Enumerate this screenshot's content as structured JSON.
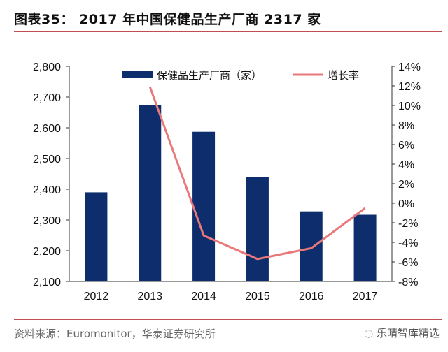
{
  "header": {
    "title": "图表35：  2017 年中国保健品生产厂商 2317 家"
  },
  "footer": {
    "source": "资料来源：Euromonitor，华泰证券研究所",
    "watermark": "乐晴智库精选"
  },
  "colors": {
    "bar": "#0d2d6c",
    "line": "#e8787a",
    "rule": "#c0504d"
  },
  "chart_data": {
    "type": "bar+line",
    "categories": [
      "2012",
      "2013",
      "2014",
      "2015",
      "2016",
      "2017"
    ],
    "series": [
      {
        "name": "保健品生产厂商（家）",
        "type": "bar",
        "axis": "left",
        "values": [
          2390,
          2675,
          2587,
          2440,
          2328,
          2317
        ]
      },
      {
        "name": "增长率",
        "type": "line",
        "axis": "right",
        "values": [
          null,
          11.9,
          -3.3,
          -5.7,
          -4.6,
          -0.5
        ]
      }
    ],
    "y_left": {
      "range": [
        2100,
        2800
      ],
      "ticks": [
        "2,100",
        "2,200",
        "2,300",
        "2,400",
        "2,500",
        "2,600",
        "2,700",
        "2,800"
      ]
    },
    "y_right": {
      "range": [
        -8,
        14
      ],
      "ticks": [
        "-8%",
        "-6%",
        "-4%",
        "-2%",
        "0%",
        "2%",
        "4%",
        "6%",
        "8%",
        "10%",
        "12%",
        "14%"
      ]
    },
    "legend": "top-center",
    "grid": false
  }
}
